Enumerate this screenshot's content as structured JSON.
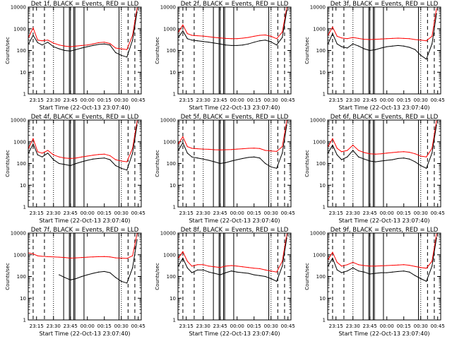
{
  "colors": {
    "black_series": "#000000",
    "red_series": "#ff0000",
    "frame": "#000000",
    "background": "#ffffff"
  },
  "axis_common": {
    "ylabel": "Counts/sec",
    "xlabel": "Start Time (22-Oct-13 23:07:40)",
    "xticks": [
      "23:15",
      "23:30",
      "23:45",
      "00:00",
      "00:15",
      "00:30",
      "00:45"
    ],
    "yticks": [
      "1",
      "10",
      "100",
      "1000",
      "10000"
    ],
    "xlim": [
      "23:07:40",
      "00:47:40"
    ],
    "ylim": [
      1,
      10000
    ],
    "ylog": true
  },
  "chart_data": [
    {
      "type": "line",
      "title": "Det 1f, BLACK = Events, RED = LLD",
      "x": [
        "23:08",
        "23:12",
        "23:16",
        "23:20",
        "23:25",
        "23:30",
        "23:35",
        "23:40",
        "23:45",
        "23:50",
        "23:55",
        "00:00",
        "00:05",
        "00:10",
        "00:15",
        "00:20",
        "00:25",
        "00:30",
        "00:35",
        "00:40",
        "00:44"
      ],
      "series": [
        {
          "name": "Events",
          "color": "black",
          "values": [
            200,
            500,
            230,
            180,
            240,
            150,
            120,
            100,
            95,
            110,
            130,
            150,
            170,
            190,
            200,
            180,
            80,
            60,
            50,
            300,
            6000
          ]
        },
        {
          "name": "LLD",
          "color": "red",
          "values": [
            400,
            1100,
            300,
            280,
            300,
            220,
            180,
            160,
            150,
            160,
            170,
            180,
            200,
            230,
            240,
            210,
            130,
            120,
            110,
            500,
            9000
          ]
        }
      ],
      "vlines_dashed": [
        "23:12",
        "23:22",
        "00:36",
        "00:42"
      ],
      "vlines_dotted": [
        "23:30",
        "00:30"
      ],
      "vlines_solid": [
        "23:39",
        "23:44",
        "23:45",
        "23:48",
        "23:49",
        "23:57",
        "00:28"
      ]
    },
    {
      "type": "line",
      "title": "Det 2f, BLACK = Events, RED = LLD",
      "x": [
        "23:08",
        "23:12",
        "23:16",
        "23:20",
        "23:25",
        "23:30",
        "23:35",
        "23:40",
        "23:45",
        "23:50",
        "23:55",
        "00:00",
        "00:05",
        "00:10",
        "00:15",
        "00:20",
        "00:25",
        "00:30",
        "00:35",
        "00:40",
        "00:44"
      ],
      "series": [
        {
          "name": "Events",
          "color": "black",
          "values": [
            400,
            800,
            350,
            300,
            280,
            260,
            240,
            220,
            200,
            180,
            170,
            170,
            180,
            200,
            240,
            280,
            300,
            250,
            180,
            400,
            7000
          ]
        },
        {
          "name": "LLD",
          "color": "red",
          "values": [
            700,
            1500,
            600,
            500,
            480,
            460,
            430,
            400,
            380,
            360,
            350,
            350,
            370,
            400,
            450,
            500,
            520,
            450,
            350,
            700,
            9500
          ]
        }
      ],
      "vlines_dashed": [
        "23:12",
        "23:22",
        "00:36",
        "00:42"
      ],
      "vlines_dotted": [
        "23:30",
        "00:30"
      ],
      "vlines_solid": [
        "23:39",
        "23:44",
        "23:45",
        "23:48",
        "23:49",
        "23:57",
        "00:28"
      ]
    },
    {
      "type": "line",
      "title": "Det 3f, BLACK = Events, RED = LLD",
      "x": [
        "23:08",
        "23:12",
        "23:16",
        "23:20",
        "23:25",
        "23:30",
        "23:35",
        "23:40",
        "23:45",
        "23:50",
        "23:55",
        "00:00",
        "00:05",
        "00:10",
        "00:15",
        "00:20",
        "00:25",
        "00:30",
        "00:35",
        "00:40",
        "00:44"
      ],
      "series": [
        {
          "name": "Events",
          "color": "black",
          "values": [
            200,
            600,
            200,
            150,
            130,
            200,
            160,
            120,
            100,
            110,
            130,
            150,
            160,
            170,
            160,
            140,
            110,
            60,
            40,
            200,
            5000
          ]
        },
        {
          "name": "LLD",
          "color": "red",
          "values": [
            500,
            1200,
            450,
            380,
            350,
            400,
            360,
            330,
            320,
            330,
            340,
            350,
            360,
            370,
            360,
            350,
            320,
            300,
            280,
            450,
            8500
          ]
        }
      ],
      "vlines_dashed": [
        "23:12",
        "23:22",
        "00:36",
        "00:42"
      ],
      "vlines_dotted": [
        "23:30",
        "00:30"
      ],
      "vlines_solid": [
        "23:39",
        "23:44",
        "23:45",
        "23:48",
        "23:49",
        "23:57",
        "00:28"
      ]
    },
    {
      "type": "line",
      "title": "Det 4f, BLACK = Events, RED = LLD",
      "x": [
        "23:08",
        "23:12",
        "23:16",
        "23:20",
        "23:25",
        "23:30",
        "23:35",
        "23:40",
        "23:45",
        "23:50",
        "23:55",
        "00:00",
        "00:05",
        "00:10",
        "00:15",
        "00:20",
        "00:25",
        "00:30",
        "00:35",
        "00:40",
        "00:44"
      ],
      "series": [
        {
          "name": "Events",
          "color": "black",
          "values": [
            300,
            800,
            250,
            200,
            300,
            150,
            100,
            90,
            80,
            100,
            120,
            140,
            160,
            170,
            180,
            150,
            80,
            60,
            50,
            300,
            6000
          ]
        },
        {
          "name": "LLD",
          "color": "red",
          "values": [
            500,
            1400,
            350,
            300,
            400,
            250,
            200,
            180,
            170,
            180,
            200,
            220,
            240,
            260,
            270,
            230,
            150,
            130,
            120,
            500,
            9000
          ]
        }
      ],
      "vlines_dashed": [
        "23:12",
        "23:22",
        "00:36",
        "00:42"
      ],
      "vlines_dotted": [
        "23:30",
        "00:30"
      ],
      "vlines_solid": [
        "23:39",
        "23:44",
        "23:45",
        "23:48",
        "23:49",
        "23:57",
        "00:28"
      ]
    },
    {
      "type": "line",
      "title": "Det 5f, BLACK = Events, RED = LLD",
      "x": [
        "23:08",
        "23:12",
        "23:16",
        "23:20",
        "23:25",
        "23:30",
        "23:35",
        "23:40",
        "23:45",
        "23:50",
        "23:55",
        "00:00",
        "00:05",
        "00:10",
        "00:15",
        "00:20",
        "00:25",
        "00:30",
        "00:35",
        "00:40",
        "00:44"
      ],
      "series": [
        {
          "name": "Events",
          "color": "black",
          "values": [
            400,
            900,
            300,
            200,
            180,
            160,
            140,
            120,
            100,
            110,
            130,
            150,
            170,
            190,
            200,
            180,
            100,
            70,
            60,
            300,
            6000
          ]
        },
        {
          "name": "LLD",
          "color": "red",
          "values": [
            800,
            1700,
            600,
            500,
            480,
            460,
            450,
            430,
            420,
            430,
            440,
            460,
            480,
            500,
            510,
            490,
            400,
            380,
            360,
            600,
            9500
          ]
        }
      ],
      "vlines_dashed": [
        "23:12",
        "23:22",
        "00:36",
        "00:42"
      ],
      "vlines_dotted": [
        "23:30",
        "00:30"
      ],
      "vlines_solid": [
        "23:39",
        "23:44",
        "23:45",
        "23:48",
        "23:49",
        "23:57",
        "00:28"
      ]
    },
    {
      "type": "line",
      "title": "Det 6f, BLACK = Events, RED = LLD",
      "x": [
        "23:08",
        "23:12",
        "23:16",
        "23:20",
        "23:25",
        "23:30",
        "23:35",
        "23:40",
        "23:45",
        "23:50",
        "23:55",
        "00:00",
        "00:05",
        "00:10",
        "00:15",
        "00:20",
        "00:25",
        "00:30",
        "00:35",
        "00:40",
        "00:44"
      ],
      "series": [
        {
          "name": "Events",
          "color": "black",
          "values": [
            300,
            700,
            250,
            150,
            200,
            400,
            200,
            160,
            130,
            120,
            130,
            140,
            150,
            170,
            180,
            160,
            120,
            80,
            60,
            300,
            6000
          ]
        },
        {
          "name": "LLD",
          "color": "red",
          "values": [
            600,
            1400,
            500,
            350,
            400,
            700,
            400,
            320,
            280,
            270,
            280,
            300,
            320,
            340,
            350,
            330,
            280,
            220,
            200,
            500,
            9000
          ]
        }
      ],
      "vlines_dashed": [
        "23:12",
        "23:22",
        "00:36",
        "00:42"
      ],
      "vlines_dotted": [
        "23:30",
        "00:30"
      ],
      "vlines_solid": [
        "23:39",
        "23:44",
        "23:45",
        "23:48",
        "23:49",
        "23:57",
        "00:28"
      ]
    },
    {
      "type": "line",
      "title": "Det 7f, BLACK = Events, RED = LLD",
      "x": [
        "23:08",
        "23:12",
        "23:16",
        "23:20",
        "23:25",
        "23:30",
        "23:35",
        "23:40",
        "23:45",
        "23:50",
        "23:55",
        "00:00",
        "00:05",
        "00:10",
        "00:15",
        "00:20",
        "00:25",
        "00:30",
        "00:35",
        "00:40",
        "00:44"
      ],
      "series": [
        {
          "name": "Events",
          "color": "black",
          "values": [
            null,
            null,
            null,
            null,
            null,
            null,
            120,
            90,
            70,
            80,
            100,
            120,
            140,
            160,
            170,
            150,
            90,
            60,
            50,
            250,
            5000
          ]
        },
        {
          "name": "LLD",
          "color": "red",
          "values": [
            1200,
            1100,
            900,
            850,
            820,
            800,
            780,
            750,
            700,
            720,
            750,
            780,
            800,
            820,
            830,
            800,
            720,
            700,
            680,
            900,
            9500
          ]
        }
      ],
      "vlines_dashed": [
        "23:12",
        "23:22",
        "00:36",
        "00:42"
      ],
      "vlines_dotted": [
        "23:30",
        "00:30"
      ],
      "vlines_solid": [
        "23:39",
        "23:44",
        "23:45",
        "23:48",
        "23:49",
        "23:57",
        "00:28"
      ]
    },
    {
      "type": "line",
      "title": "Det 8f, BLACK = Events, RED = LLD",
      "x": [
        "23:08",
        "23:12",
        "23:16",
        "23:20",
        "23:25",
        "23:30",
        "23:35",
        "23:40",
        "23:45",
        "23:50",
        "23:55",
        "00:00",
        "00:05",
        "00:10",
        "00:15",
        "00:20",
        "00:25",
        "00:30",
        "00:35",
        "00:40",
        "00:44"
      ],
      "series": [
        {
          "name": "Events",
          "color": "black",
          "values": [
            300,
            700,
            250,
            150,
            200,
            200,
            160,
            140,
            120,
            150,
            180,
            160,
            150,
            140,
            120,
            110,
            100,
            80,
            60,
            300,
            6000
          ]
        },
        {
          "name": "LLD",
          "color": "red",
          "values": [
            700,
            1400,
            500,
            300,
            350,
            350,
            300,
            280,
            260,
            300,
            320,
            300,
            280,
            260,
            240,
            230,
            200,
            180,
            160,
            500,
            9000
          ]
        }
      ],
      "vlines_dashed": [
        "23:12",
        "23:22",
        "00:36",
        "00:42"
      ],
      "vlines_dotted": [
        "23:30",
        "00:30"
      ],
      "vlines_solid": [
        "23:39",
        "23:44",
        "23:45",
        "23:48",
        "23:49",
        "23:57",
        "00:28"
      ]
    },
    {
      "type": "line",
      "title": "Det 9f, BLACK = Events, RED = LLD",
      "x": [
        "23:08",
        "23:12",
        "23:16",
        "23:20",
        "23:25",
        "23:30",
        "23:35",
        "23:40",
        "23:45",
        "23:50",
        "23:55",
        "00:00",
        "00:05",
        "00:10",
        "00:15",
        "00:20",
        "00:25",
        "00:30",
        "00:35",
        "00:40",
        "00:44"
      ],
      "series": [
        {
          "name": "Events",
          "color": "black",
          "values": [
            300,
            700,
            200,
            150,
            180,
            250,
            180,
            160,
            130,
            140,
            150,
            150,
            160,
            170,
            180,
            160,
            110,
            80,
            60,
            300,
            6000
          ]
        },
        {
          "name": "LLD",
          "color": "red",
          "values": [
            600,
            1300,
            450,
            300,
            350,
            450,
            350,
            320,
            300,
            300,
            310,
            320,
            330,
            340,
            350,
            330,
            290,
            260,
            240,
            500,
            9000
          ]
        }
      ],
      "vlines_dashed": [
        "23:12",
        "23:22",
        "00:36",
        "00:42"
      ],
      "vlines_dotted": [
        "23:30",
        "00:30"
      ],
      "vlines_solid": [
        "23:39",
        "23:44",
        "23:45",
        "23:48",
        "23:49",
        "23:57",
        "00:28"
      ]
    }
  ]
}
